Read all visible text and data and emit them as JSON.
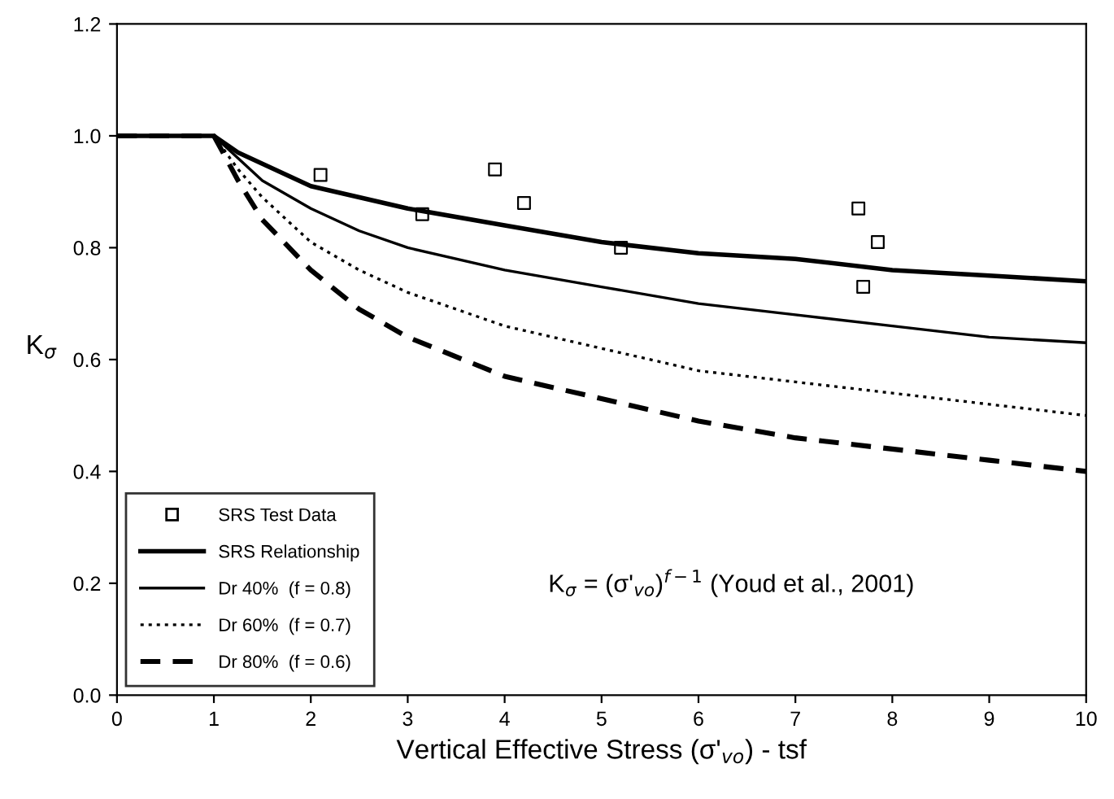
{
  "chart_data": {
    "type": "line",
    "xlabel": "Vertical Effective Stress (σ'$_{vo}$) - tsf",
    "ylabel": "K$_{σ}$",
    "annotations": [
      "K$_{σ}$ = (σ'$_{vo}$)$^{f−1}$ (Youd et al., 2001)"
    ],
    "xlim": [
      0,
      10
    ],
    "xticks": [
      0,
      1,
      2,
      3,
      4,
      5,
      6,
      7,
      8,
      9,
      10
    ],
    "ylim": [
      0,
      1.2
    ],
    "yticks": [
      {
        "value": 0,
        "label": "0.0"
      },
      {
        "value": 0.2,
        "label": "0.2"
      },
      {
        "value": 0.4,
        "label": "0.4"
      },
      {
        "value": 0.6,
        "label": "0.6"
      },
      {
        "value": 0.8,
        "label": "0.8"
      },
      {
        "value": 1.0,
        "label": "1.0"
      },
      {
        "value": 1.2,
        "label": "1.2"
      }
    ],
    "grid": false,
    "legend": "bottom left",
    "series": [
      {
        "name": "SRS Test Data",
        "type": "scatter",
        "marker": "square",
        "color": "#000000",
        "x": [
          2.1,
          3.15,
          3.9,
          4.2,
          5.2,
          7.65,
          7.85,
          7.7
        ],
        "values": [
          0.93,
          0.86,
          0.94,
          0.88,
          0.8,
          0.87,
          0.81,
          0.73
        ]
      },
      {
        "name": "SRS Relationship",
        "line_style": "solid",
        "color": "#000000",
        "x": [
          0,
          1,
          1.25,
          1.5,
          2,
          2.5,
          3,
          4,
          5,
          6,
          7,
          8,
          9,
          10
        ],
        "values": [
          1,
          1,
          0.97,
          0.95,
          0.91,
          0.89,
          0.87,
          0.84,
          0.81,
          0.79,
          0.78,
          0.76,
          0.75,
          0.74
        ]
      },
      {
        "name": "Dr 40%  (f = 0.8)",
        "line_style": "solid",
        "color": "#000000",
        "x": [
          0,
          1,
          1.25,
          1.5,
          2,
          2.5,
          3,
          4,
          5,
          6,
          7,
          8,
          9,
          10
        ],
        "values": [
          1,
          1,
          0.96,
          0.92,
          0.87,
          0.83,
          0.8,
          0.76,
          0.73,
          0.7,
          0.68,
          0.66,
          0.64,
          0.63
        ]
      },
      {
        "name": "Dr 60%  (f = 0.7)",
        "line_style": "dotted",
        "color": "#000000",
        "x": [
          0,
          1,
          1.25,
          1.5,
          2,
          2.5,
          3,
          4,
          5,
          6,
          7,
          8,
          9,
          10
        ],
        "values": [
          1,
          1,
          0.94,
          0.89,
          0.81,
          0.76,
          0.72,
          0.66,
          0.62,
          0.58,
          0.56,
          0.54,
          0.52,
          0.5
        ]
      },
      {
        "name": "Dr 80%  (f = 0.6)",
        "line_style": "dashed",
        "color": "#000000",
        "x": [
          0,
          1,
          1.25,
          1.5,
          2,
          2.5,
          3,
          4,
          5,
          6,
          7,
          8,
          9,
          10
        ],
        "values": [
          1,
          1,
          0.92,
          0.85,
          0.76,
          0.69,
          0.64,
          0.57,
          0.53,
          0.49,
          0.46,
          0.44,
          0.42,
          0.4
        ]
      }
    ]
  }
}
